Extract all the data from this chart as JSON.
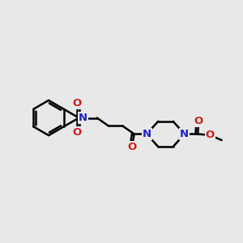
{
  "background_color": "#e8e8e8",
  "bond_color": "#000000",
  "nitrogen_color": "#2020cc",
  "oxygen_color": "#cc2020",
  "atom_bg": "#e8e8e8",
  "lw": 1.8,
  "fs": 9.5,
  "xlim": [
    -0.5,
    9.5
  ],
  "ylim": [
    2.5,
    7.5
  ]
}
